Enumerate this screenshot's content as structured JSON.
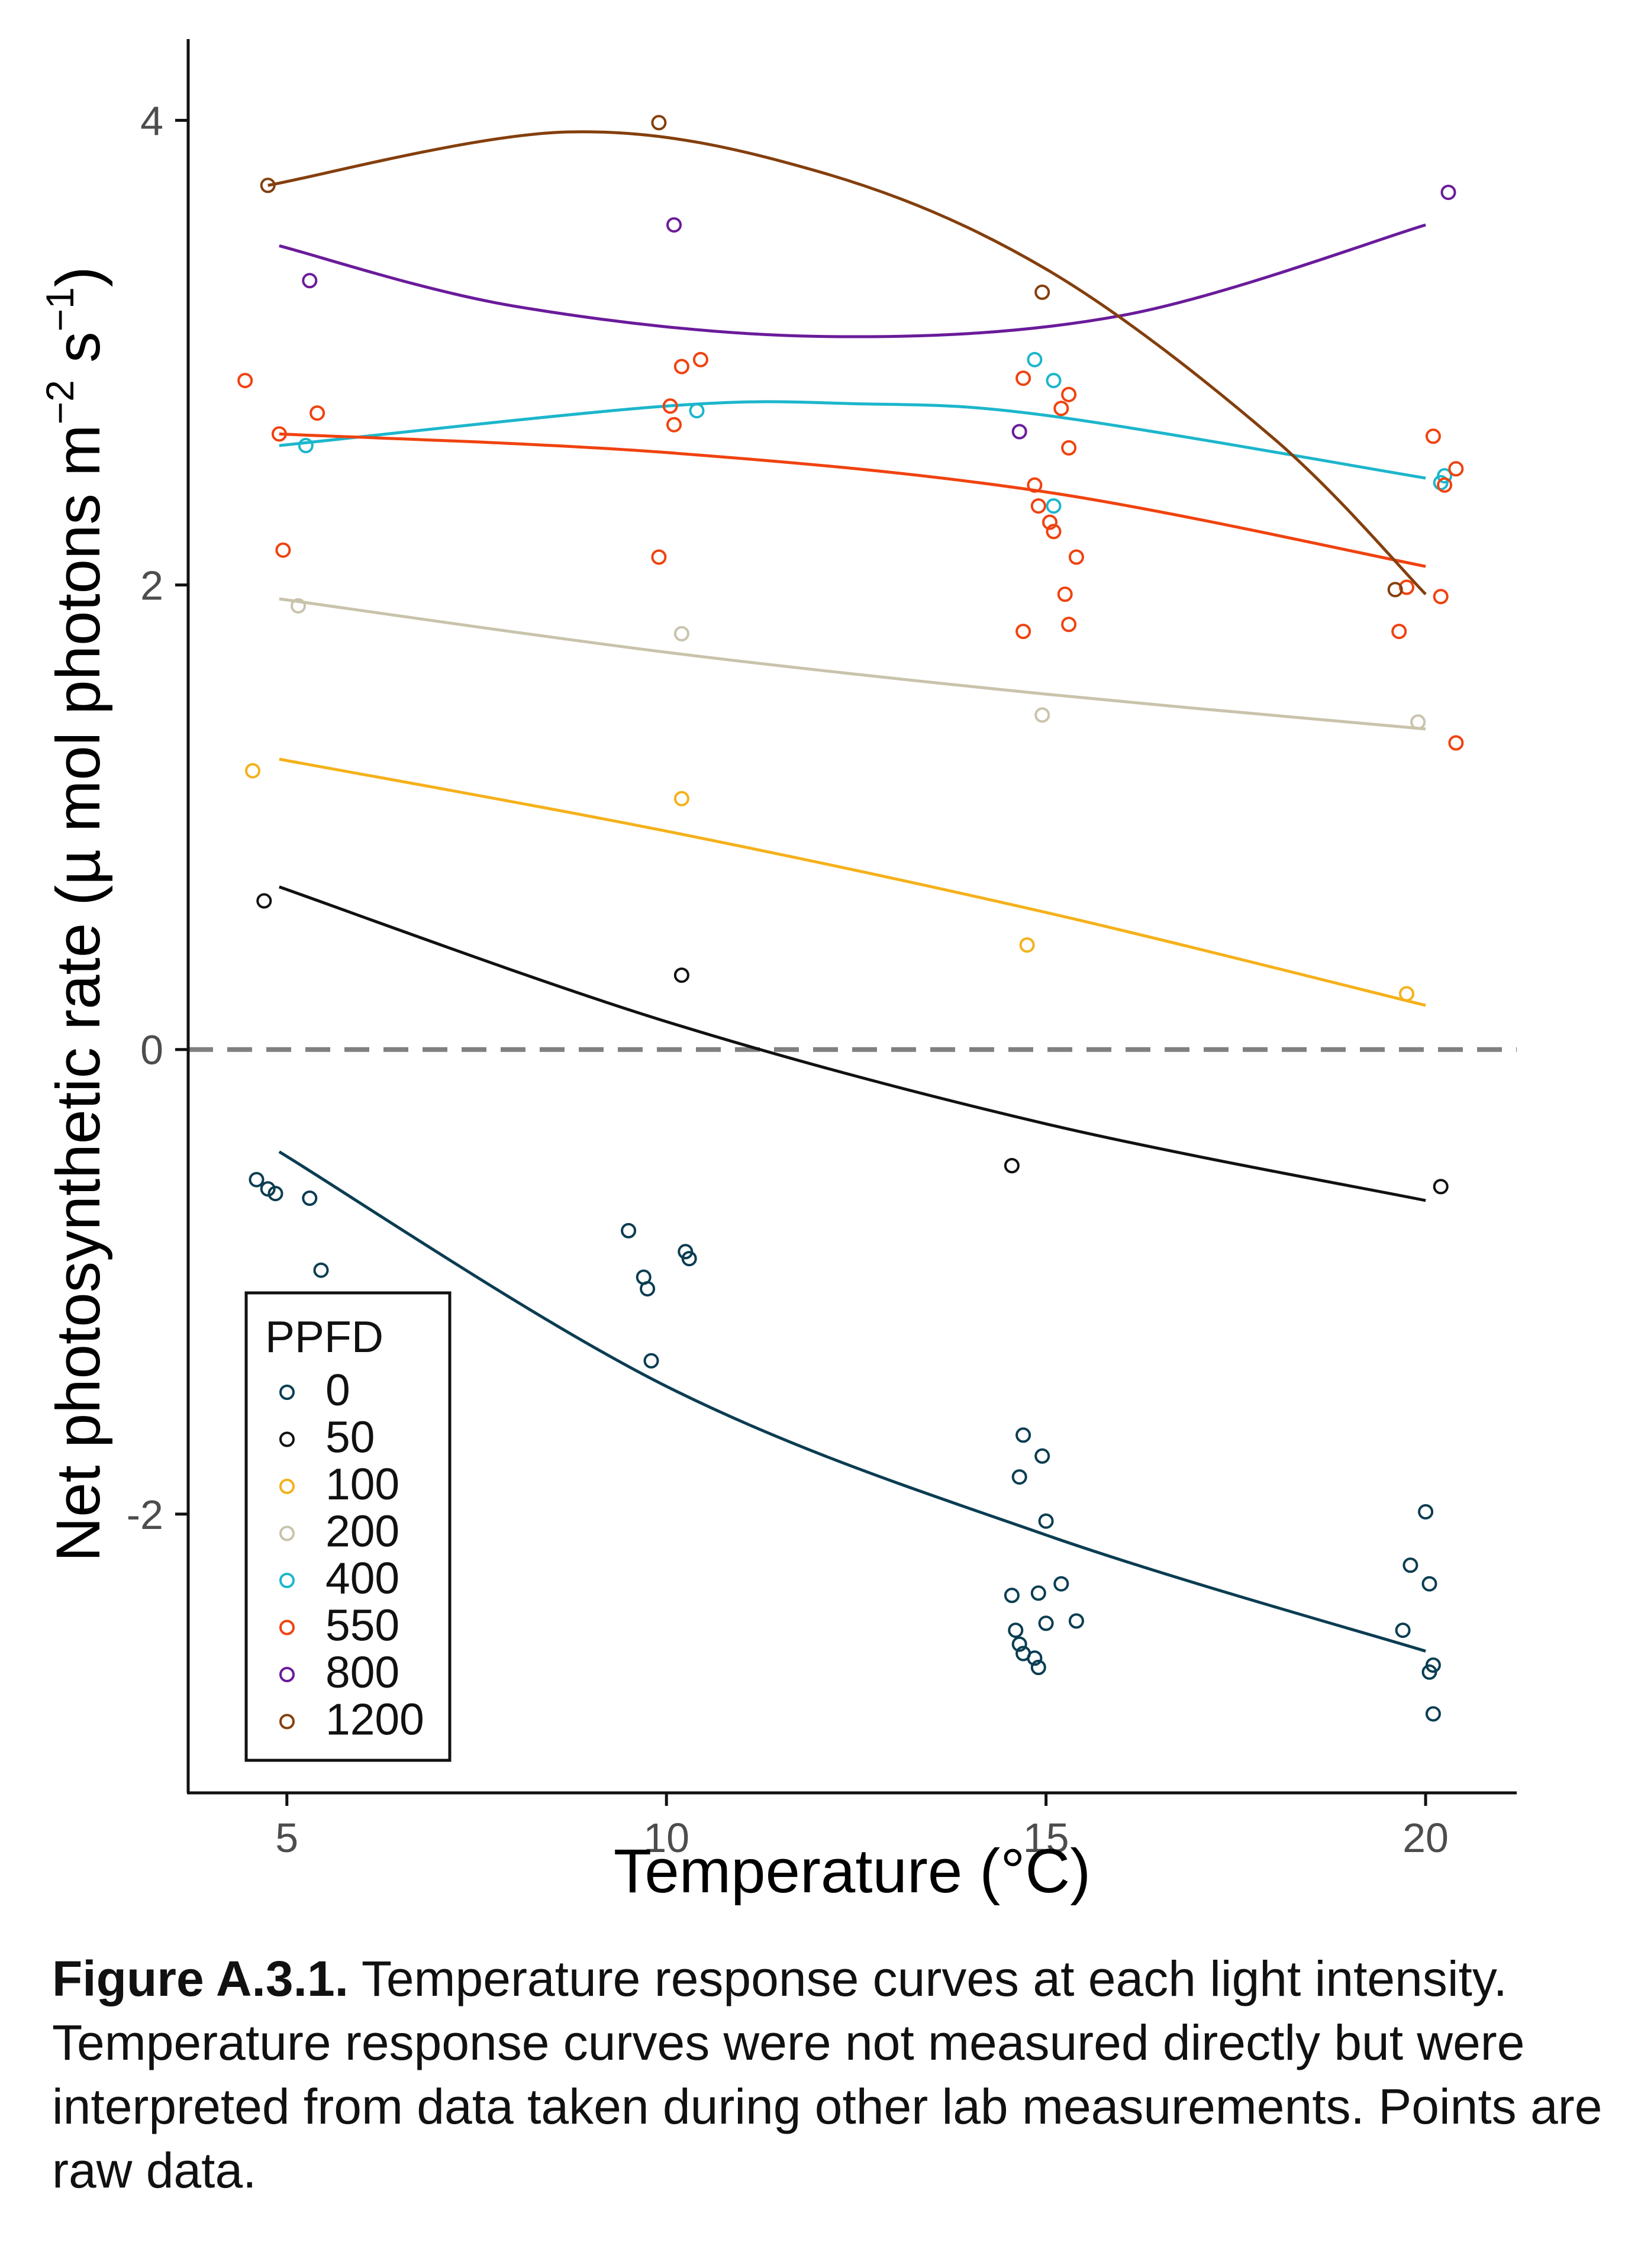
{
  "chart_data": {
    "type": "scatter",
    "xlabel": "Temperature (°C)",
    "ylabel": "Net photosynthetic rate (µ mol photons m",
    "ylabel_sup1": "−2",
    "ylabel_mid": " s",
    "ylabel_sup2": "−1",
    "ylabel_end": ")",
    "xlim": [
      3.7,
      21.2
    ],
    "ylim": [
      -3.2,
      4.35
    ],
    "xticks": [
      5,
      10,
      15,
      20
    ],
    "yticks": [
      -2,
      0,
      2,
      4
    ],
    "grid": false,
    "reference_line": {
      "y": 0,
      "style": "dashed",
      "color": "#808080"
    },
    "legend": {
      "title": "PPFD",
      "position": "bottom-left"
    },
    "series": [
      {
        "name": "0",
        "color": "#0b3d52",
        "points": [
          [
            4.6,
            -0.56
          ],
          [
            4.75,
            -0.6
          ],
          [
            4.85,
            -0.62
          ],
          [
            5.3,
            -0.64
          ],
          [
            5.45,
            -0.95
          ],
          [
            9.5,
            -0.78
          ],
          [
            9.7,
            -0.98
          ],
          [
            9.75,
            -1.03
          ],
          [
            9.8,
            -1.34
          ],
          [
            10.25,
            -0.87
          ],
          [
            10.3,
            -0.9
          ],
          [
            14.55,
            -2.35
          ],
          [
            14.6,
            -2.5
          ],
          [
            14.65,
            -2.56
          ],
          [
            14.7,
            -2.6
          ],
          [
            14.65,
            -1.84
          ],
          [
            14.7,
            -1.66
          ],
          [
            14.9,
            -2.34
          ],
          [
            14.85,
            -2.62
          ],
          [
            14.9,
            -2.66
          ],
          [
            14.95,
            -1.75
          ],
          [
            15.0,
            -2.03
          ],
          [
            15.0,
            -2.47
          ],
          [
            15.2,
            -2.3
          ],
          [
            15.4,
            -2.46
          ],
          [
            19.7,
            -2.5
          ],
          [
            19.8,
            -2.22
          ],
          [
            20.0,
            -1.99
          ],
          [
            20.05,
            -2.3
          ],
          [
            20.05,
            -2.68
          ],
          [
            20.1,
            -2.65
          ],
          [
            20.1,
            -2.86
          ]
        ],
        "curve": [
          [
            4.9,
            -0.44
          ],
          [
            10,
            -1.45
          ],
          [
            15,
            -2.09
          ],
          [
            20,
            -2.59
          ]
        ]
      },
      {
        "name": "50",
        "color": "#111111",
        "points": [
          [
            4.7,
            0.64
          ],
          [
            10.2,
            0.32
          ],
          [
            14.55,
            -0.5
          ],
          [
            20.2,
            -0.59
          ]
        ],
        "curve": [
          [
            4.9,
            0.7
          ],
          [
            10,
            0.12
          ],
          [
            15,
            -0.32
          ],
          [
            20,
            -0.65
          ]
        ]
      },
      {
        "name": "100",
        "color": "#f5b11b",
        "points": [
          [
            4.55,
            1.2
          ],
          [
            10.2,
            1.08
          ],
          [
            14.75,
            0.45
          ],
          [
            19.75,
            0.24
          ]
        ],
        "curve": [
          [
            4.9,
            1.25
          ],
          [
            10,
            0.94
          ],
          [
            15,
            0.59
          ],
          [
            20,
            0.19
          ]
        ]
      },
      {
        "name": "200",
        "color": "#c9c3ac",
        "points": [
          [
            5.15,
            1.91
          ],
          [
            10.2,
            1.79
          ],
          [
            14.95,
            1.44
          ],
          [
            19.9,
            1.41
          ]
        ],
        "curve": [
          [
            4.9,
            1.94
          ],
          [
            10,
            1.71
          ],
          [
            15,
            1.53
          ],
          [
            20,
            1.38
          ]
        ]
      },
      {
        "name": "400",
        "color": "#1cb6cc",
        "points": [
          [
            5.25,
            2.6
          ],
          [
            10.4,
            2.75
          ],
          [
            14.85,
            2.97
          ],
          [
            15.1,
            2.88
          ],
          [
            15.1,
            2.34
          ],
          [
            20.2,
            2.44
          ],
          [
            20.25,
            2.47
          ]
        ],
        "curve": [
          [
            4.9,
            2.6
          ],
          [
            10,
            2.77
          ],
          [
            12.5,
            2.78
          ],
          [
            15,
            2.73
          ],
          [
            20,
            2.46
          ]
        ]
      },
      {
        "name": "550",
        "color": "#f0420f",
        "points": [
          [
            4.45,
            2.88
          ],
          [
            4.9,
            2.65
          ],
          [
            4.95,
            2.15
          ],
          [
            5.4,
            2.74
          ],
          [
            9.9,
            2.12
          ],
          [
            10.05,
            2.77
          ],
          [
            10.1,
            2.69
          ],
          [
            10.2,
            2.94
          ],
          [
            10.45,
            2.97
          ],
          [
            14.7,
            2.89
          ],
          [
            14.7,
            1.8
          ],
          [
            14.85,
            2.43
          ],
          [
            14.9,
            2.34
          ],
          [
            15.05,
            2.27
          ],
          [
            15.1,
            2.23
          ],
          [
            15.2,
            2.76
          ],
          [
            15.25,
            1.96
          ],
          [
            15.3,
            2.82
          ],
          [
            15.3,
            2.59
          ],
          [
            15.3,
            1.83
          ],
          [
            15.4,
            2.12
          ],
          [
            19.65,
            1.8
          ],
          [
            19.75,
            1.99
          ],
          [
            20.1,
            2.64
          ],
          [
            20.2,
            1.95
          ],
          [
            20.25,
            2.43
          ],
          [
            20.4,
            2.5
          ],
          [
            20.4,
            1.32
          ]
        ],
        "curve": [
          [
            4.9,
            2.65
          ],
          [
            10,
            2.57
          ],
          [
            15,
            2.4
          ],
          [
            20,
            2.08
          ]
        ]
      },
      {
        "name": "800",
        "color": "#6a1b9a",
        "points": [
          [
            5.3,
            3.31
          ],
          [
            10.1,
            3.55
          ],
          [
            14.65,
            2.66
          ],
          [
            20.3,
            3.69
          ]
        ],
        "curve": [
          [
            4.9,
            3.46
          ],
          [
            8,
            3.2
          ],
          [
            12,
            3.07
          ],
          [
            16,
            3.16
          ],
          [
            20,
            3.55
          ]
        ]
      },
      {
        "name": "1200",
        "color": "#843f0d",
        "points": [
          [
            4.75,
            3.72
          ],
          [
            9.9,
            3.99
          ],
          [
            14.95,
            3.26
          ],
          [
            19.6,
            1.98
          ]
        ],
        "curve": [
          [
            4.75,
            3.72
          ],
          [
            8.7,
            3.95
          ],
          [
            12,
            3.78
          ],
          [
            15,
            3.36
          ],
          [
            18,
            2.63
          ],
          [
            20,
            1.96
          ]
        ]
      }
    ]
  },
  "caption": {
    "label": "Figure A.3.1.",
    "text": " Temperature response curves at each light intensity. Temperature response curves were not measured directly but were interpreted from data taken during other lab measurements. Points are raw data."
  }
}
